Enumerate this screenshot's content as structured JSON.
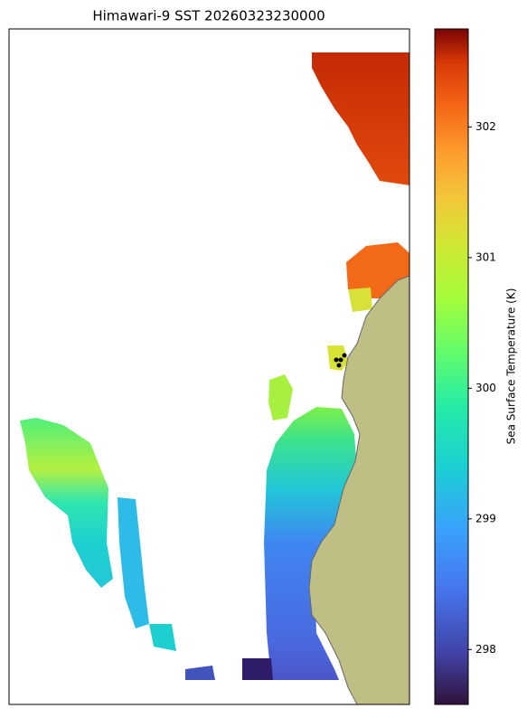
{
  "title": "Himawari-9 SST 20260323230000",
  "colorbar": {
    "label": "Sea Surface Temperature (K)",
    "lim": [
      297.58,
      302.75
    ],
    "ticks": [
      298,
      299,
      300,
      301,
      302
    ]
  }
}
